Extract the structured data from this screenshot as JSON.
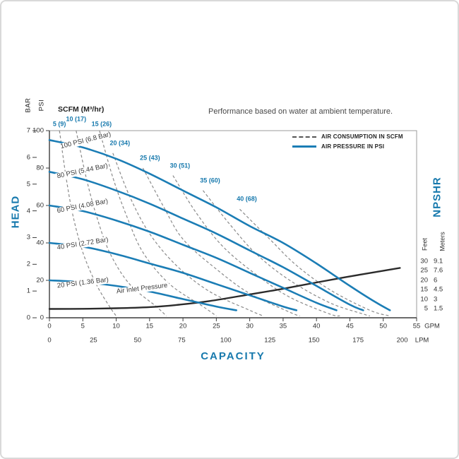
{
  "page": {
    "background": "#ffffff",
    "frame_color": "#d9d9d9",
    "accent_blue": "#1779ad",
    "curve_blue": "#1b7db5",
    "dash_gray": "#8a8a8a",
    "npshr_black": "#2b2b2b"
  },
  "title": "Performance based on water at ambient temperature.",
  "axes": {
    "head_label": "HEAD",
    "capacity_label": "CAPACITY",
    "npshr_label": "NPSHR",
    "bar_label": "BAR",
    "psi_label": "PSI",
    "scfm_header": "SCFM (M³/hr)",
    "gpm_unit": "GPM",
    "lpm_unit": "LPM"
  },
  "legend": [
    {
      "label": "AIR CONSUMPTION IN SCFM",
      "style": "dashed"
    },
    {
      "label": "AIR PRESSURE IN PSI",
      "style": "solid"
    }
  ],
  "npshr_table": {
    "feet_header": "Feet",
    "meters_header": "Meters",
    "rows": [
      [
        "30",
        "9.1"
      ],
      [
        "25",
        "7.6"
      ],
      [
        "20",
        "6"
      ],
      [
        "15",
        "4.5"
      ],
      [
        "10",
        "3"
      ],
      [
        "5",
        "1.5"
      ]
    ]
  },
  "chart_data": {
    "type": "line",
    "title": "Performance based on water at ambient temperature.",
    "xlabel": "CAPACITY",
    "ylabel_left": "HEAD",
    "ylabel_right": "NPSHR",
    "x_axis_gpm": {
      "ticks": [
        0,
        5,
        10,
        15,
        20,
        25,
        30,
        35,
        40,
        45,
        50,
        55
      ],
      "max": 55,
      "unit": "GPM"
    },
    "x_axis_lpm": {
      "ticks": [
        0,
        25,
        50,
        75,
        100,
        125,
        150,
        175,
        200
      ],
      "unit": "LPM",
      "lpm_per_gal": 3.785
    },
    "y_axis_psi": {
      "ticks": [
        0,
        20,
        40,
        60,
        80,
        100
      ],
      "max": 100,
      "unit": "PSI"
    },
    "y_axis_bar": {
      "ticks": [
        0,
        1,
        2,
        3,
        4,
        5,
        6,
        7
      ],
      "max": 7,
      "unit": "BAR"
    },
    "npshr_axis": {
      "feet_ticks": [
        30,
        25,
        20,
        15,
        10,
        5
      ],
      "meters_ticks": [
        9.1,
        7.6,
        6,
        4.5,
        3,
        1.5
      ]
    },
    "legend_position": "top-right",
    "grid": false,
    "pressure_curves": [
      {
        "label": "100 PSI (6.8 Bar)",
        "label_pos": [
          1.5,
          91
        ],
        "label_angle": -14,
        "points": [
          [
            0,
            95
          ],
          [
            5,
            91
          ],
          [
            10,
            85
          ],
          [
            15,
            77
          ],
          [
            20,
            68
          ],
          [
            25,
            59
          ],
          [
            30,
            49
          ],
          [
            35,
            40
          ],
          [
            40,
            29
          ],
          [
            45,
            17
          ],
          [
            49,
            8
          ],
          [
            51,
            4
          ]
        ]
      },
      {
        "label": "80 PSI (5.44 Bar)",
        "label_pos": [
          1.0,
          75
        ],
        "label_angle": -12,
        "points": [
          [
            0,
            78
          ],
          [
            5,
            74
          ],
          [
            10,
            68
          ],
          [
            15,
            61
          ],
          [
            20,
            53
          ],
          [
            25,
            45
          ],
          [
            30,
            36
          ],
          [
            35,
            27
          ],
          [
            40,
            17
          ],
          [
            45,
            7
          ],
          [
            47,
            4
          ]
        ]
      },
      {
        "label": "60 PSI (4.08 Bar)",
        "label_pos": [
          1.0,
          56.5
        ],
        "label_angle": -11,
        "points": [
          [
            0,
            60
          ],
          [
            5,
            57
          ],
          [
            10,
            52
          ],
          [
            15,
            46
          ],
          [
            20,
            39
          ],
          [
            25,
            32
          ],
          [
            30,
            24
          ],
          [
            35,
            16
          ],
          [
            40,
            8
          ],
          [
            43,
            4
          ]
        ]
      },
      {
        "label": "40 PSI (2.72 Bar)",
        "label_pos": [
          1.0,
          37
        ],
        "label_angle": -9,
        "points": [
          [
            0,
            40
          ],
          [
            5,
            38
          ],
          [
            10,
            34
          ],
          [
            15,
            29
          ],
          [
            20,
            24
          ],
          [
            25,
            18
          ],
          [
            30,
            12
          ],
          [
            35,
            6
          ],
          [
            37,
            4
          ]
        ]
      },
      {
        "label": "20 PSI (1.36 Bar)",
        "label_pos": [
          1.0,
          16.5
        ],
        "label_angle": -7,
        "points": [
          [
            0,
            20
          ],
          [
            5,
            19
          ],
          [
            10,
            17
          ],
          [
            15,
            14
          ],
          [
            20,
            10
          ],
          [
            25,
            6
          ],
          [
            28,
            4
          ]
        ]
      }
    ],
    "consumption_curves": [
      {
        "label": "5 (9)",
        "label_offset": [
          0,
          -9
        ],
        "points": [
          [
            1.5,
            100
          ],
          [
            2.5,
            75
          ],
          [
            3.5,
            55
          ],
          [
            5,
            35
          ],
          [
            7,
            18
          ],
          [
            9,
            6
          ],
          [
            10,
            1
          ]
        ]
      },
      {
        "label": "10 (17)",
        "label_offset": [
          0,
          -16
        ],
        "points": [
          [
            4,
            100
          ],
          [
            5.5,
            75
          ],
          [
            7,
            55
          ],
          [
            9,
            35
          ],
          [
            12,
            18
          ],
          [
            16,
            6
          ],
          [
            17.5,
            1
          ]
        ]
      },
      {
        "label": "15 (26)",
        "label_offset": [
          3,
          -9
        ],
        "points": [
          [
            7.5,
            100
          ],
          [
            9.5,
            75
          ],
          [
            11.5,
            55
          ],
          [
            14,
            35
          ],
          [
            18,
            18
          ],
          [
            23,
            6
          ],
          [
            25,
            1
          ]
        ]
      },
      {
        "label": "20 (34)",
        "label_offset": [
          10,
          -14
        ],
        "points": [
          [
            9.5,
            88
          ],
          [
            12,
            65
          ],
          [
            15,
            45
          ],
          [
            19,
            28
          ],
          [
            24,
            14
          ],
          [
            30,
            4
          ],
          [
            32,
            1
          ]
        ]
      },
      {
        "label": "25 (43)",
        "label_offset": [
          10,
          -14
        ],
        "points": [
          [
            14,
            80
          ],
          [
            17,
            60
          ],
          [
            20,
            42
          ],
          [
            25,
            26
          ],
          [
            30,
            13
          ],
          [
            36,
            3
          ],
          [
            37.5,
            1
          ]
        ]
      },
      {
        "label": "30 (51)",
        "label_offset": [
          10,
          -14
        ],
        "points": [
          [
            18.5,
            76
          ],
          [
            22,
            56
          ],
          [
            26,
            38
          ],
          [
            31,
            23
          ],
          [
            36,
            11
          ],
          [
            42,
            2
          ],
          [
            43.5,
            1
          ]
        ]
      },
      {
        "label": "35 (60)",
        "label_offset": [
          10,
          -14
        ],
        "points": [
          [
            23,
            68
          ],
          [
            27,
            50
          ],
          [
            31,
            34
          ],
          [
            36,
            20
          ],
          [
            42,
            8
          ],
          [
            47,
            2
          ],
          [
            48,
            1
          ]
        ]
      },
      {
        "label": "40 (68)",
        "label_offset": [
          10,
          -14
        ],
        "points": [
          [
            28.5,
            58
          ],
          [
            33,
            42
          ],
          [
            37,
            28
          ],
          [
            42,
            15
          ],
          [
            48,
            4
          ],
          [
            51,
            1
          ]
        ]
      }
    ],
    "npshr_curve": {
      "units": "gpm,feet",
      "points": [
        [
          0,
          4.8
        ],
        [
          5,
          4.9
        ],
        [
          10,
          5.2
        ],
        [
          15,
          5.8
        ],
        [
          19,
          6.9
        ],
        [
          24,
          9
        ],
        [
          30,
          12.5
        ],
        [
          35,
          15.5
        ],
        [
          40,
          18.8
        ],
        [
          45,
          22
        ],
        [
          50,
          25
        ],
        [
          52.5,
          26.5
        ]
      ]
    },
    "air_inlet_note": "Air Inlet Pressure",
    "air_inlet_note_pos": [
      9.8,
      13.5
    ],
    "air_inlet_note_angle": -7
  }
}
